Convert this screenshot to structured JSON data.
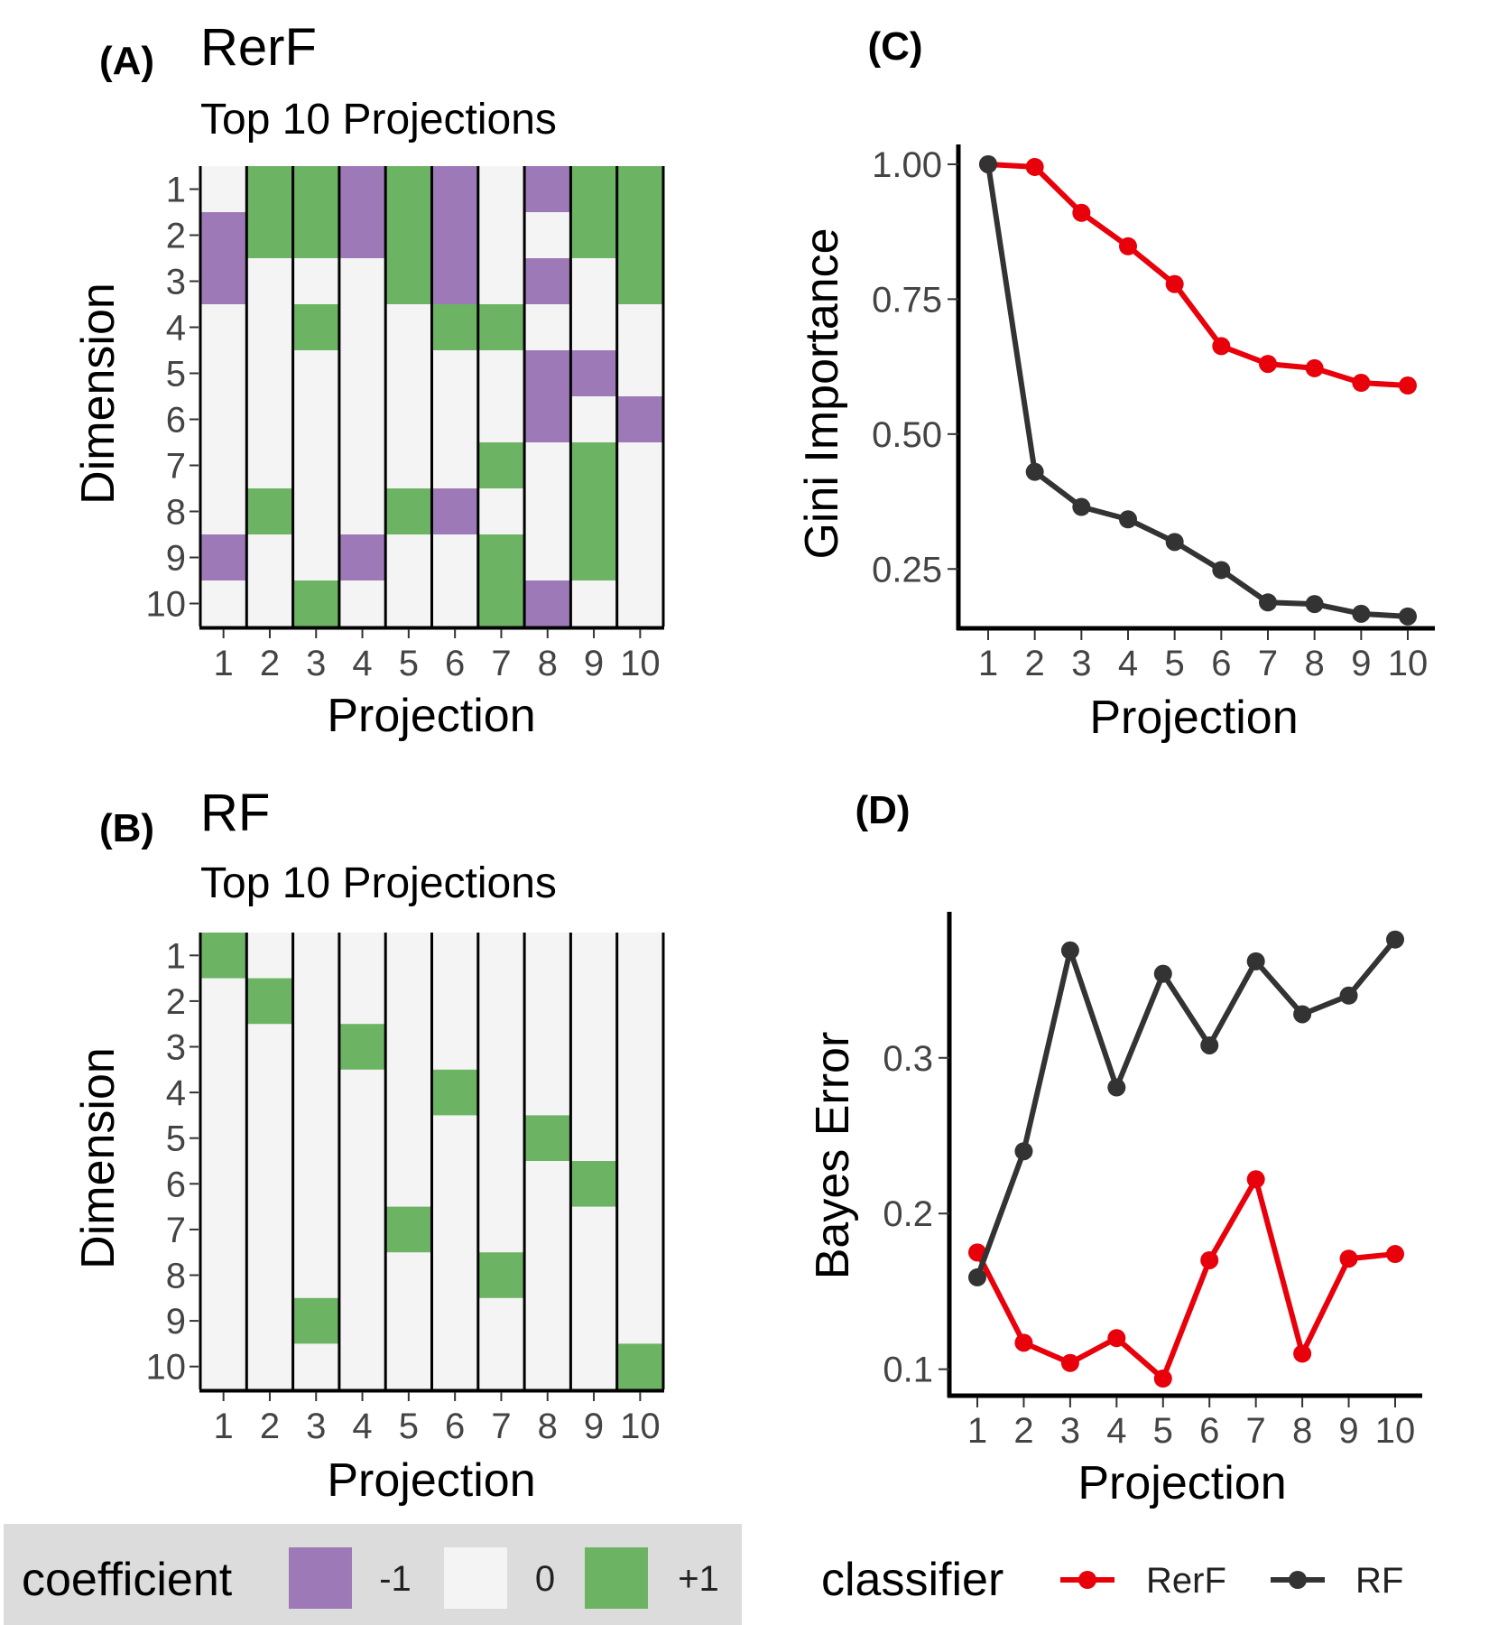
{
  "panels": {
    "A": {
      "label": "(A)",
      "title": "RerF",
      "subtitle": "Top 10 Projections",
      "xlabel": "Projection",
      "ylabel": "Dimension"
    },
    "B": {
      "label": "(B)",
      "title": "RF",
      "subtitle": "Top 10 Projections",
      "xlabel": "Projection",
      "ylabel": "Dimension"
    },
    "C": {
      "label": "(C)",
      "xlabel": "Projection",
      "ylabel": "Gini Importance"
    },
    "D": {
      "label": "(D)",
      "xlabel": "Projection",
      "ylabel": "Bayes Error"
    }
  },
  "colors": {
    "neg": "#9e79b7",
    "zero": "#f4f4f4",
    "pos": "#6cb463",
    "rerf": "#e8000b",
    "rf": "#333333",
    "legend_bg": "#dcdcdc"
  },
  "legends": {
    "coefficient": {
      "title": "coefficient",
      "items": [
        {
          "label": "-1",
          "value": -1
        },
        {
          "label": "0",
          "value": 0
        },
        {
          "label": "+1",
          "value": 1
        }
      ]
    },
    "classifier": {
      "title": "classifier",
      "items": [
        {
          "label": "RerF",
          "key": "rerf"
        },
        {
          "label": "RF",
          "key": "rf"
        }
      ]
    }
  },
  "chart_data": [
    {
      "id": "A",
      "type": "heatmap",
      "x": [
        "1",
        "2",
        "3",
        "4",
        "5",
        "6",
        "7",
        "8",
        "9",
        "10"
      ],
      "y": [
        "1",
        "2",
        "3",
        "4",
        "5",
        "6",
        "7",
        "8",
        "9",
        "10"
      ],
      "values": [
        [
          0,
          1,
          1,
          -1,
          1,
          -1,
          0,
          -1,
          1,
          1
        ],
        [
          -1,
          1,
          1,
          -1,
          1,
          -1,
          0,
          0,
          1,
          1
        ],
        [
          -1,
          0,
          0,
          0,
          1,
          -1,
          0,
          -1,
          0,
          1
        ],
        [
          0,
          0,
          1,
          0,
          0,
          1,
          1,
          0,
          0,
          0
        ],
        [
          0,
          0,
          0,
          0,
          0,
          0,
          0,
          -1,
          -1,
          0
        ],
        [
          0,
          0,
          0,
          0,
          0,
          0,
          0,
          -1,
          0,
          -1
        ],
        [
          0,
          0,
          0,
          0,
          0,
          0,
          1,
          0,
          1,
          0
        ],
        [
          0,
          1,
          0,
          0,
          1,
          -1,
          0,
          0,
          1,
          0
        ],
        [
          -1,
          0,
          0,
          -1,
          0,
          0,
          1,
          0,
          1,
          0
        ],
        [
          0,
          0,
          1,
          0,
          0,
          0,
          1,
          -1,
          0,
          0
        ]
      ]
    },
    {
      "id": "B",
      "type": "heatmap",
      "x": [
        "1",
        "2",
        "3",
        "4",
        "5",
        "6",
        "7",
        "8",
        "9",
        "10"
      ],
      "y": [
        "1",
        "2",
        "3",
        "4",
        "5",
        "6",
        "7",
        "8",
        "9",
        "10"
      ],
      "values": [
        [
          1,
          0,
          0,
          0,
          0,
          0,
          0,
          0,
          0,
          0
        ],
        [
          0,
          1,
          0,
          0,
          0,
          0,
          0,
          0,
          0,
          0
        ],
        [
          0,
          0,
          0,
          1,
          0,
          0,
          0,
          0,
          0,
          0
        ],
        [
          0,
          0,
          0,
          0,
          0,
          1,
          0,
          0,
          0,
          0
        ],
        [
          0,
          0,
          0,
          0,
          0,
          0,
          0,
          1,
          0,
          0
        ],
        [
          0,
          0,
          0,
          0,
          0,
          0,
          0,
          0,
          1,
          0
        ],
        [
          0,
          0,
          0,
          0,
          1,
          0,
          0,
          0,
          0,
          0
        ],
        [
          0,
          0,
          0,
          0,
          0,
          0,
          1,
          0,
          0,
          0
        ],
        [
          0,
          0,
          1,
          0,
          0,
          0,
          0,
          0,
          0,
          0
        ],
        [
          0,
          0,
          0,
          0,
          0,
          0,
          0,
          0,
          0,
          1
        ]
      ]
    },
    {
      "id": "C",
      "type": "line",
      "x": [
        1,
        2,
        3,
        4,
        5,
        6,
        7,
        8,
        9,
        10
      ],
      "xticks": [
        "1",
        "2",
        "3",
        "4",
        "5",
        "6",
        "7",
        "8",
        "9",
        "10"
      ],
      "ylim": [
        0.14,
        1.02
      ],
      "yticks": [
        {
          "v": 0.25,
          "label": "0.25"
        },
        {
          "v": 0.5,
          "label": "0.50"
        },
        {
          "v": 0.75,
          "label": "0.75"
        },
        {
          "v": 1.0,
          "label": "1.00"
        }
      ],
      "series": [
        {
          "name": "RerF",
          "key": "rerf",
          "values": [
            1.0,
            0.995,
            0.91,
            0.848,
            0.778,
            0.663,
            0.63,
            0.622,
            0.595,
            0.59
          ]
        },
        {
          "name": "RF",
          "key": "rf",
          "values": [
            1.0,
            0.43,
            0.365,
            0.342,
            0.3,
            0.248,
            0.188,
            0.185,
            0.167,
            0.162
          ]
        }
      ]
    },
    {
      "id": "D",
      "type": "line",
      "x": [
        1,
        2,
        3,
        4,
        5,
        6,
        7,
        8,
        9,
        10
      ],
      "xticks": [
        "1",
        "2",
        "3",
        "4",
        "5",
        "6",
        "7",
        "8",
        "9",
        "10"
      ],
      "ylim": [
        0.083,
        0.388
      ],
      "yticks": [
        {
          "v": 0.1,
          "label": "0.1"
        },
        {
          "v": 0.2,
          "label": "0.2"
        },
        {
          "v": 0.3,
          "label": "0.3"
        }
      ],
      "series": [
        {
          "name": "RerF",
          "key": "rerf",
          "values": [
            0.175,
            0.117,
            0.104,
            0.12,
            0.094,
            0.17,
            0.222,
            0.11,
            0.171,
            0.174
          ]
        },
        {
          "name": "RF",
          "key": "rf",
          "values": [
            0.159,
            0.24,
            0.369,
            0.281,
            0.354,
            0.308,
            0.362,
            0.328,
            0.34,
            0.376
          ]
        }
      ]
    }
  ]
}
